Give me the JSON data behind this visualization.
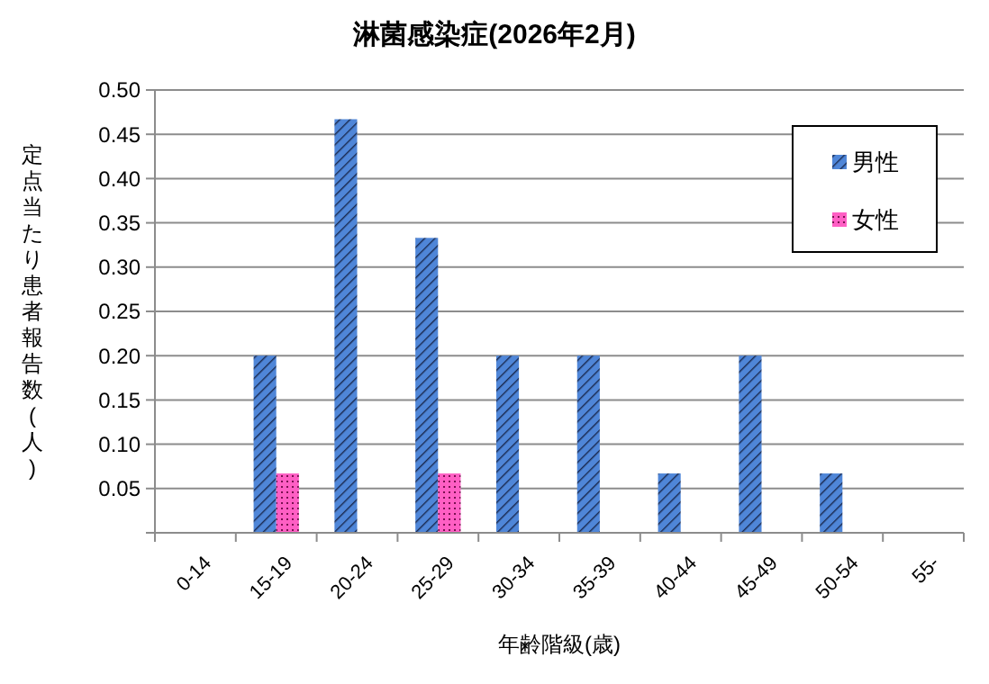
{
  "chart_data": {
    "type": "bar",
    "title": "淋菌感染症(2026年2月)",
    "xlabel": "年齢階級(歳)",
    "ylabel": "定点当たり患者報告数(人)",
    "categories": [
      "0-14",
      "15-19",
      "20-24",
      "25-29",
      "30-34",
      "35-39",
      "40-44",
      "45-49",
      "50-54",
      "55-"
    ],
    "series": [
      {
        "name": "男性",
        "color": "#4f86d8",
        "values": [
          0,
          0.2,
          0.467,
          0.333,
          0.2,
          0.2,
          0.067,
          0.2,
          0.067,
          0
        ]
      },
      {
        "name": "女性",
        "color": "#ff5fc4",
        "values": [
          0,
          0.067,
          0,
          0.067,
          0,
          0,
          0,
          0,
          0,
          0
        ]
      }
    ],
    "ylim": [
      0,
      0.5
    ],
    "yticks": [
      {
        "value": 0,
        "label": null
      },
      0.05,
      {
        "value": 0.1,
        "label": "0.10"
      },
      0.15,
      {
        "value": 0.2,
        "label": "0.20"
      },
      0.25,
      {
        "value": 0.3,
        "label": "0.30"
      },
      0.35,
      {
        "value": 0.4,
        "label": "0.40"
      },
      0.45,
      {
        "value": 0.5,
        "label": "0.50"
      }
    ],
    "grid": "y",
    "legend": "top right"
  }
}
